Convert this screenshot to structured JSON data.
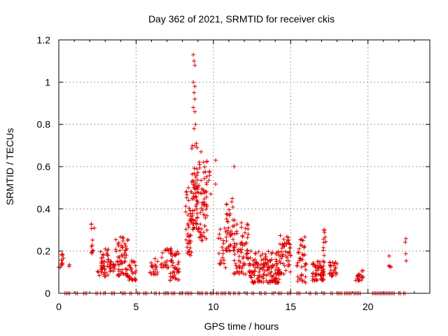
{
  "chart_data": {
    "type": "scatter",
    "title": "Day 362 of 2021, SRMTID for receiver ckis",
    "xlabel": "GPS time / hours",
    "ylabel": "SRMTID / TECUs",
    "xlim": [
      0,
      24
    ],
    "ylim": [
      0,
      1.2
    ],
    "xticks": [
      0,
      5,
      10,
      15,
      20
    ],
    "yticks": [
      0,
      0.2,
      0.4,
      0.6,
      0.8,
      1,
      1.2
    ],
    "grid": true,
    "marker": "+",
    "colors": {
      "points": "#dd0000",
      "grid": "#a0a0a0",
      "axes": "#000000"
    },
    "zero_points_x": [
      0.4,
      0.5,
      0.6,
      0.7,
      1.1,
      1.2,
      1.6,
      1.7,
      1.8,
      2.4,
      2.5,
      2.7,
      2.9,
      3.0,
      3.4,
      3.5,
      3.6,
      4.1,
      4.2,
      4.3,
      4.6,
      4.7,
      5.1,
      5.2,
      5.5,
      5.6,
      5.7,
      6.2,
      6.3,
      6.5,
      6.8,
      6.9,
      7.0,
      7.1,
      7.3,
      7.4,
      7.5,
      7.8,
      7.9,
      8.0,
      8.2,
      8.3,
      8.4,
      8.5,
      8.6,
      9.0,
      9.1,
      9.2,
      9.3,
      9.5,
      9.6,
      9.8,
      9.9,
      10.0,
      10.2,
      10.3,
      10.5,
      10.6,
      10.7,
      10.8,
      11.0,
      11.1,
      11.3,
      11.4,
      11.6,
      11.7,
      12.1,
      12.2,
      12.5,
      12.6,
      13.0,
      13.1,
      13.3,
      13.4,
      13.8,
      13.9,
      14.2,
      14.3,
      14.4,
      14.8,
      14.9,
      15.0,
      15.4,
      15.5,
      15.6,
      16.2,
      16.3,
      16.6,
      16.7,
      17.1,
      17.2,
      17.6,
      17.7,
      18.0,
      18.1,
      18.2,
      18.3,
      18.5,
      18.6,
      18.7,
      18.8,
      18.9,
      19.1,
      19.2,
      19.3,
      19.4,
      19.5,
      20.3,
      20.4,
      20.5,
      20.6,
      20.7,
      20.8,
      20.9,
      21.0,
      21.1,
      21.2,
      21.3,
      21.4,
      21.5,
      21.6,
      21.7,
      22.0,
      22.1,
      22.3,
      22.4
    ],
    "point_clusters": [
      {
        "x": [
          0.0,
          0.3
        ],
        "y": [
          0.12,
          0.2
        ],
        "n": 12
      },
      {
        "x": [
          0.6,
          0.7
        ],
        "y": [
          0.12,
          0.16
        ],
        "n": 2
      },
      {
        "x": [
          2.1,
          2.3
        ],
        "y": [
          0.19,
          0.33
        ],
        "n": 12
      },
      {
        "x": [
          2.5,
          3.2
        ],
        "y": [
          0.08,
          0.21
        ],
        "n": 40
      },
      {
        "x": [
          3.2,
          3.6
        ],
        "y": [
          0.1,
          0.16
        ],
        "n": 18
      },
      {
        "x": [
          3.6,
          4.5
        ],
        "y": [
          0.08,
          0.27
        ],
        "n": 60
      },
      {
        "x": [
          4.5,
          5.0
        ],
        "y": [
          0.06,
          0.17
        ],
        "n": 25
      },
      {
        "x": [
          5.9,
          6.4
        ],
        "y": [
          0.09,
          0.17
        ],
        "n": 22
      },
      {
        "x": [
          6.6,
          7.1
        ],
        "y": [
          0.12,
          0.21
        ],
        "n": 18
      },
      {
        "x": [
          7.2,
          7.8
        ],
        "y": [
          0.06,
          0.22
        ],
        "n": 45
      },
      {
        "x": [
          8.2,
          8.6
        ],
        "y": [
          0.18,
          0.5
        ],
        "n": 45
      },
      {
        "x": [
          8.6,
          9.0
        ],
        "y": [
          0.3,
          0.7
        ],
        "n": 60
      },
      {
        "x": [
          9.0,
          9.6
        ],
        "y": [
          0.25,
          0.63
        ],
        "n": 60
      },
      {
        "x": [
          9.6,
          10.2
        ],
        "y": [
          0.46,
          0.58
        ],
        "n": 6
      },
      {
        "x": [
          10.3,
          10.8
        ],
        "y": [
          0.12,
          0.35
        ],
        "n": 20
      },
      {
        "x": [
          10.8,
          11.4
        ],
        "y": [
          0.2,
          0.46
        ],
        "n": 45
      },
      {
        "x": [
          11.3,
          12.3
        ],
        "y": [
          0.09,
          0.34
        ],
        "n": 70
      },
      {
        "x": [
          12.3,
          14.3
        ],
        "y": [
          0.05,
          0.2
        ],
        "n": 150
      },
      {
        "x": [
          14.3,
          15.0
        ],
        "y": [
          0.09,
          0.28
        ],
        "n": 50
      },
      {
        "x": [
          15.4,
          16.0
        ],
        "y": [
          0.05,
          0.27
        ],
        "n": 40
      },
      {
        "x": [
          16.4,
          17.2
        ],
        "y": [
          0.06,
          0.16
        ],
        "n": 60
      },
      {
        "x": [
          17.1,
          17.3
        ],
        "y": [
          0.17,
          0.3
        ],
        "n": 10
      },
      {
        "x": [
          17.5,
          18.0
        ],
        "y": [
          0.08,
          0.15
        ],
        "n": 25
      },
      {
        "x": [
          19.2,
          19.7
        ],
        "y": [
          0.06,
          0.11
        ],
        "n": 20
      },
      {
        "x": [
          21.3,
          21.5
        ],
        "y": [
          0.12,
          0.18
        ],
        "n": 5
      },
      {
        "x": [
          22.4,
          22.5
        ],
        "y": [
          0.15,
          0.27
        ],
        "n": 4
      }
    ],
    "points_extra": [
      [
        8.7,
        1.13
      ],
      [
        8.75,
        1.1
      ],
      [
        8.8,
        1.08
      ],
      [
        8.7,
        1.0
      ],
      [
        8.8,
        0.98
      ],
      [
        8.75,
        0.95
      ],
      [
        8.8,
        0.92
      ],
      [
        8.7,
        0.88
      ],
      [
        8.8,
        0.86
      ],
      [
        8.85,
        0.8
      ],
      [
        8.75,
        0.78
      ],
      [
        8.9,
        0.71
      ],
      [
        8.95,
        0.69
      ],
      [
        9.2,
        0.67
      ],
      [
        10.15,
        0.63
      ],
      [
        11.35,
        0.6
      ]
    ]
  }
}
